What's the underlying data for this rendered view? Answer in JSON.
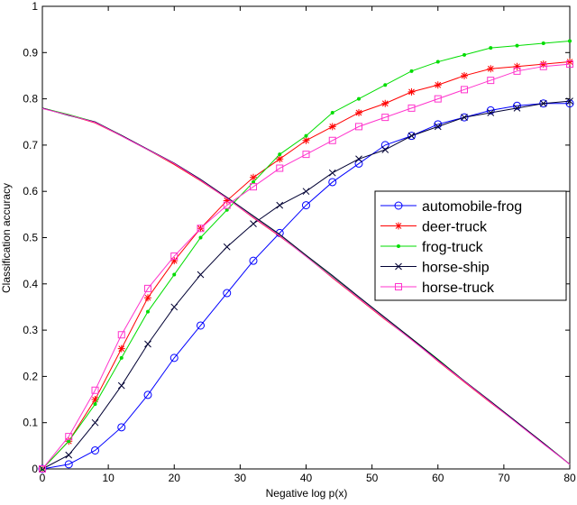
{
  "chart_data": {
    "type": "line",
    "xlabel": "Negative log p(x)",
    "ylabel": "Classification accuracy",
    "x": [
      0,
      4,
      8,
      12,
      16,
      20,
      24,
      28,
      32,
      36,
      40,
      44,
      48,
      52,
      56,
      60,
      64,
      68,
      72,
      76,
      80
    ],
    "xlim": [
      0,
      80
    ],
    "xticks": [
      0,
      10,
      20,
      30,
      40,
      50,
      60,
      70,
      80
    ],
    "ylim": [
      0,
      1
    ],
    "yticks": [
      0,
      0.1,
      0.2,
      0.3,
      0.4,
      0.5,
      0.6,
      0.7,
      0.8,
      0.9,
      1
    ],
    "legend": "center right",
    "series": [
      {
        "name": "automobile-frog",
        "color": "#0000ff",
        "marker": "circle",
        "values": [
          0,
          0.01,
          0.04,
          0.09,
          0.16,
          0.24,
          0.31,
          0.38,
          0.45,
          0.51,
          0.57,
          0.62,
          0.66,
          0.7,
          0.72,
          0.745,
          0.76,
          0.775,
          0.785,
          0.79,
          0.79
        ],
        "falling": [
          0.78,
          0.765,
          0.75,
          0.72,
          0.69,
          0.66,
          0.625,
          0.585,
          0.545,
          0.505,
          0.46,
          0.415,
          0.37,
          0.325,
          0.28,
          0.235,
          0.19,
          0.145,
          0.1,
          0.055,
          0.01
        ]
      },
      {
        "name": "deer-truck",
        "color": "#ff0000",
        "marker": "star",
        "values": [
          0,
          0.06,
          0.15,
          0.26,
          0.37,
          0.45,
          0.52,
          0.58,
          0.63,
          0.67,
          0.71,
          0.74,
          0.77,
          0.79,
          0.815,
          0.83,
          0.85,
          0.865,
          0.87,
          0.875,
          0.88
        ],
        "falling": [
          0.78,
          0.765,
          0.748,
          0.72,
          0.69,
          0.658,
          0.623,
          0.585,
          0.543,
          0.503,
          0.46,
          0.413,
          0.368,
          0.323,
          0.28,
          0.233,
          0.188,
          0.143,
          0.1,
          0.055,
          0.01
        ]
      },
      {
        "name": "frog-truck",
        "color": "#00dd00",
        "marker": "dot",
        "values": [
          0,
          0.06,
          0.14,
          0.24,
          0.34,
          0.42,
          0.5,
          0.56,
          0.62,
          0.68,
          0.72,
          0.77,
          0.8,
          0.83,
          0.86,
          0.88,
          0.895,
          0.91,
          0.915,
          0.92,
          0.925
        ],
        "falling": [
          0.78,
          0.766,
          0.75,
          0.721,
          0.69,
          0.66,
          0.625,
          0.586,
          0.545,
          0.505,
          0.461,
          0.415,
          0.37,
          0.326,
          0.282,
          0.237,
          0.19,
          0.146,
          0.1,
          0.056,
          0.01
        ]
      },
      {
        "name": "horse-ship",
        "color": "#000033",
        "marker": "x",
        "values": [
          0,
          0.03,
          0.1,
          0.18,
          0.27,
          0.35,
          0.42,
          0.48,
          0.53,
          0.57,
          0.6,
          0.64,
          0.67,
          0.69,
          0.72,
          0.74,
          0.76,
          0.77,
          0.78,
          0.79,
          0.795
        ],
        "falling": [
          0.78,
          0.764,
          0.75,
          0.721,
          0.691,
          0.661,
          0.626,
          0.587,
          0.547,
          0.507,
          0.462,
          0.418,
          0.372,
          0.327,
          0.282,
          0.236,
          0.19,
          0.146,
          0.101,
          0.056,
          0.01
        ]
      },
      {
        "name": "horse-truck",
        "color": "#ff33cc",
        "marker": "square",
        "values": [
          0,
          0.07,
          0.17,
          0.29,
          0.39,
          0.46,
          0.52,
          0.57,
          0.61,
          0.65,
          0.68,
          0.71,
          0.74,
          0.76,
          0.78,
          0.8,
          0.82,
          0.84,
          0.86,
          0.87,
          0.875
        ],
        "falling": [
          0.779,
          0.765,
          0.749,
          0.72,
          0.69,
          0.66,
          0.624,
          0.585,
          0.544,
          0.504,
          0.459,
          0.414,
          0.369,
          0.324,
          0.279,
          0.234,
          0.189,
          0.144,
          0.099,
          0.054,
          0.01
        ]
      }
    ]
  }
}
